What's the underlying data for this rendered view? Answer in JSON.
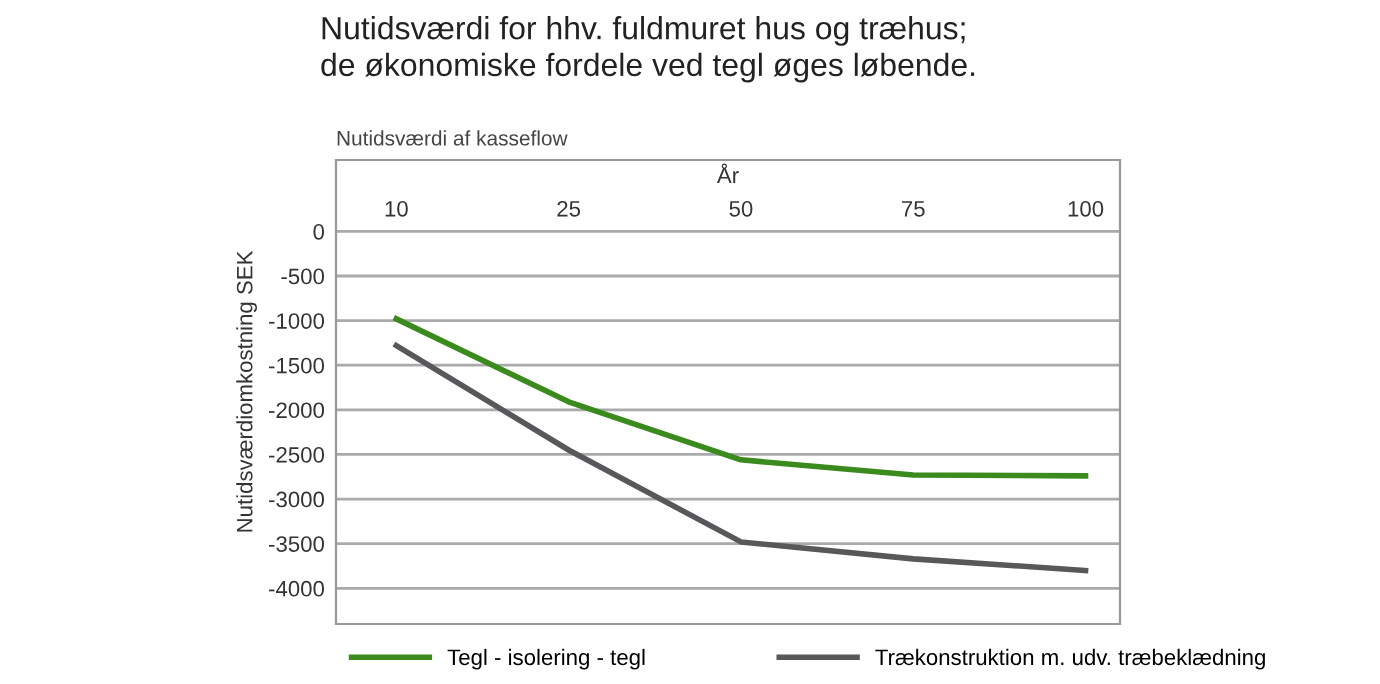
{
  "chart_data": {
    "type": "line",
    "title": "Nutidsværdi for hhv. fuldmuret hus og træhus;\nde økonomiske fordele ved tegl øges løbende.",
    "annotations": [
      "Nutidsværdi af kasseflow"
    ],
    "xlabel": "År",
    "ylabel": "Nutidsværdiomkostning SEK",
    "categories": [
      "10",
      "25",
      "50",
      "75",
      "100"
    ],
    "series": [
      {
        "name": "Tegl - isolering - tegl",
        "color": "#3a8a1e",
        "values": [
          -980,
          -1910,
          -2560,
          -2730,
          -2740
        ]
      },
      {
        "name": "Trækonstruktion m. udv. træbeklædning",
        "color": "#58585a",
        "values": [
          -1280,
          -2450,
          -3480,
          -3670,
          -3800
        ]
      }
    ],
    "ylim": [
      -4400,
      800
    ],
    "yticks": [
      0,
      -500,
      -1000,
      -1500,
      -2000,
      -2500,
      -3000,
      -3500,
      -4000
    ],
    "grid": "y",
    "legend": "bottom",
    "marker": "none",
    "line_style": "solid"
  }
}
